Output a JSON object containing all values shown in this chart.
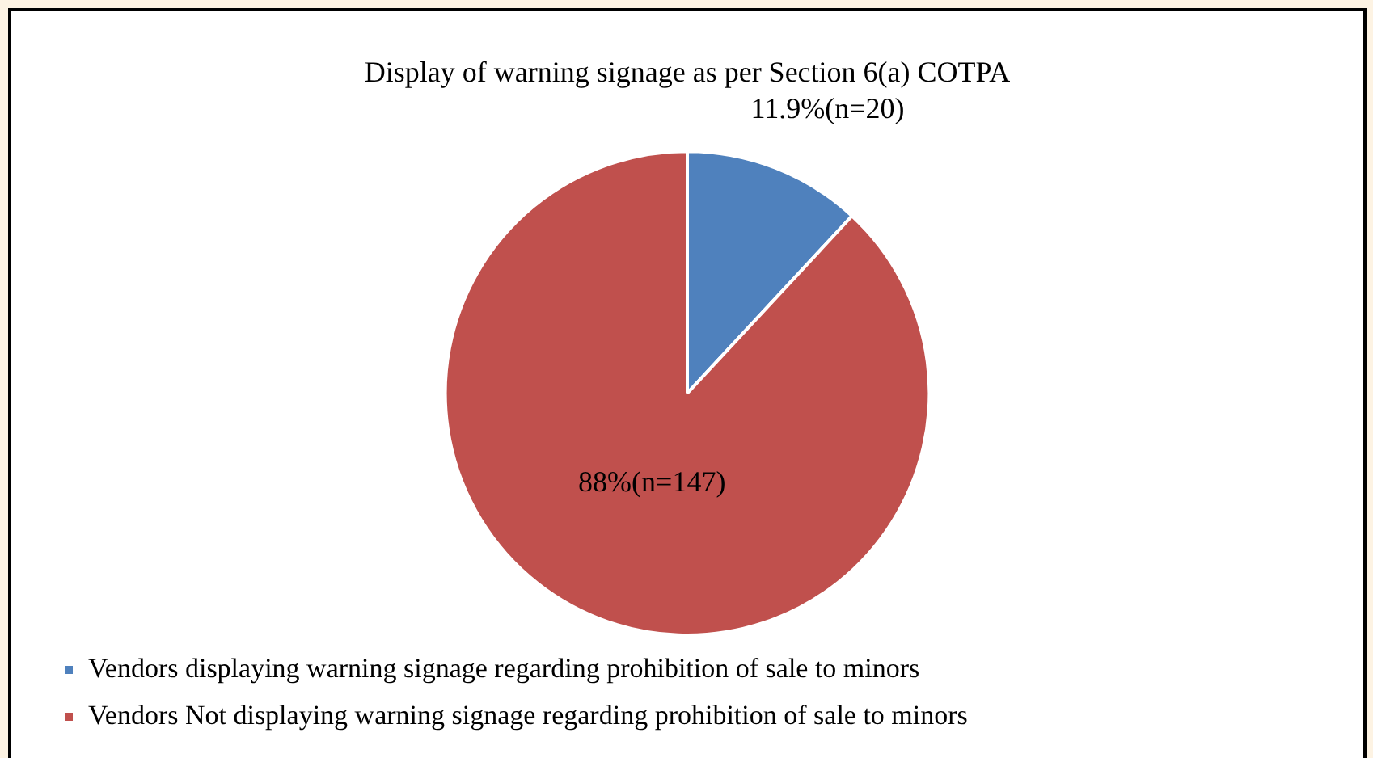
{
  "chart_data": {
    "type": "pie",
    "title": "Display of warning signage as per Section 6(a) COTPA",
    "categories": [
      "Vendors displaying warning signage regarding prohibition of sale to minors",
      "Vendors Not displaying warning signage regarding prohibition of sale to minors"
    ],
    "values": [
      11.9,
      88
    ],
    "value_labels": [
      "11.9%(n=20)",
      "88%(n=147)"
    ],
    "colors": [
      "#4f81bd",
      "#c0504d"
    ],
    "legend": "bottom"
  }
}
